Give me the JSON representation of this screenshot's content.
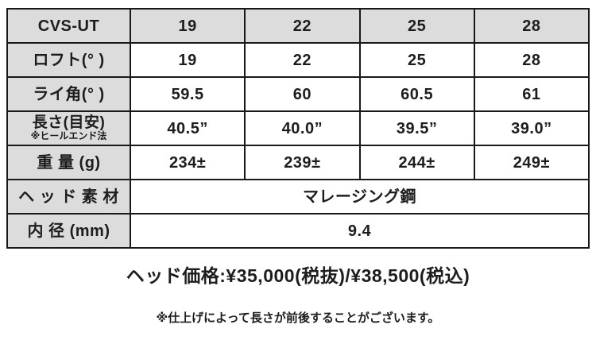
{
  "colors": {
    "header_bg": "#dcdcdc",
    "border": "#191919",
    "text": "#1d1d1d",
    "page_bg": "#ffffff"
  },
  "table": {
    "header": {
      "label": "CVS-UT",
      "values": [
        "19",
        "22",
        "25",
        "28"
      ]
    },
    "rows": [
      {
        "label": "ロフト(° )",
        "values": [
          "19",
          "22",
          "25",
          "28"
        ]
      },
      {
        "label": "ライ角(° )",
        "values": [
          "59.5",
          "60",
          "60.5",
          "61"
        ]
      },
      {
        "label": "長さ(目安)",
        "sublabel": "※ヒールエンド法",
        "values": [
          "40.5”",
          "40.0”",
          "39.5”",
          "39.0”"
        ]
      },
      {
        "label": "重 量 (g)",
        "values": [
          "234±",
          "239±",
          "244±",
          "249±"
        ]
      }
    ],
    "merged_rows": [
      {
        "label": "ヘ ッ ド 素 材",
        "value": "マレージング鋼"
      },
      {
        "label": "内 径 (mm)",
        "value": "9.4"
      }
    ]
  },
  "price_line": "ヘッド価格:¥35,000(税抜)/¥38,500(税込)",
  "footnote": "※仕上げによって長さが前後することがございます。"
}
